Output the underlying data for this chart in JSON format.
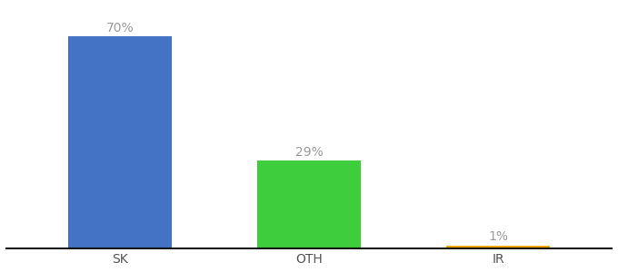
{
  "categories": [
    "SK",
    "OTH",
    "IR"
  ],
  "values": [
    70,
    29,
    1
  ],
  "bar_colors": [
    "#4472c4",
    "#3dcd3d",
    "#f5a800"
  ],
  "labels": [
    "70%",
    "29%",
    "1%"
  ],
  "ylim": [
    0,
    80
  ],
  "background_color": "#ffffff",
  "label_color": "#999999",
  "tick_fontsize": 10,
  "label_fontsize": 10,
  "bar_width": 0.55
}
